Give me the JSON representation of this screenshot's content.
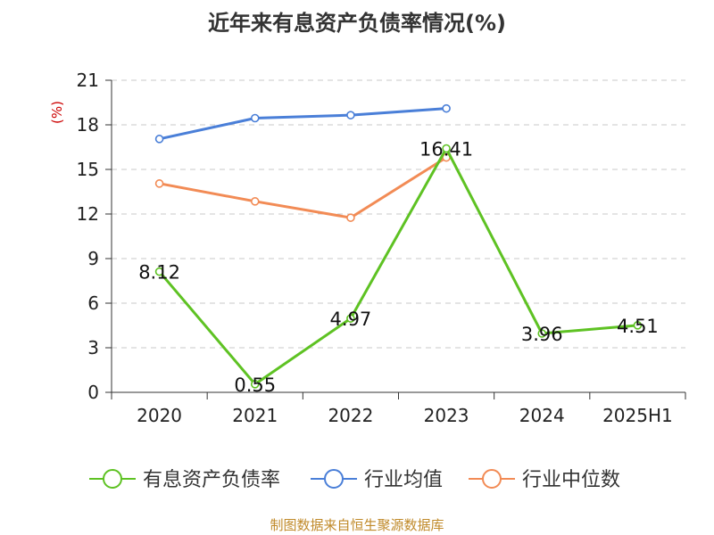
{
  "chart_data": {
    "type": "line",
    "title": "近年来有息资产负债率情况(%)",
    "unit_label": "(%)",
    "categories": [
      "2020",
      "2021",
      "2022",
      "2023",
      "2024",
      "2025H1"
    ],
    "ylim": [
      0,
      21
    ],
    "yticks": [
      0,
      3,
      6,
      9,
      12,
      15,
      18,
      21
    ],
    "grid": true,
    "legend_position": "bottom",
    "series": [
      {
        "name": "有息资产负债率",
        "color": "#5ec223",
        "values": [
          8.12,
          0.55,
          4.97,
          16.41,
          3.96,
          4.51
        ],
        "labels": [
          "8.12",
          "0.55",
          "4.97",
          "16.41",
          "3.96",
          "4.51"
        ]
      },
      {
        "name": "行业均值",
        "color": "#4a7fd8",
        "values": [
          17.05,
          18.45,
          18.65,
          19.1,
          null,
          null
        ]
      },
      {
        "name": "行业中位数",
        "color": "#f28b55",
        "values": [
          14.05,
          12.85,
          11.75,
          15.8,
          null,
          null
        ]
      }
    ]
  },
  "source": "制图数据来自恒生聚源数据库"
}
